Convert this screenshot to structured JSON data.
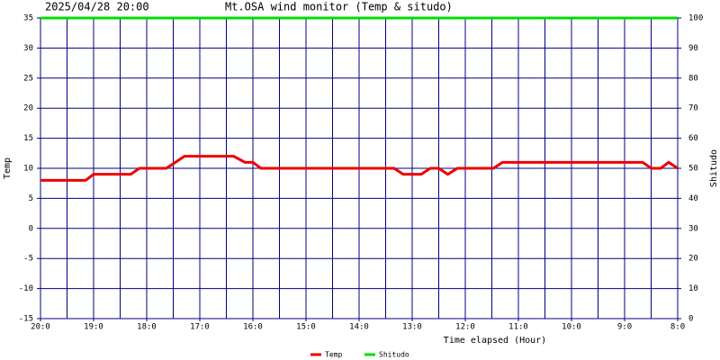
{
  "chart_data": {
    "type": "line",
    "title": "Mt.OSA wind monitor (Temp & situdo)",
    "subtitle": "2025/04/28 20:00",
    "xlabel": "Time elapsed (Hour)",
    "ylabel": "Temp",
    "y2label": "Shitudo",
    "xlim": [
      0,
      12
    ],
    "xticks": [
      {
        "value": 0,
        "label": "20:0"
      },
      {
        "value": 1,
        "label": "19:0"
      },
      {
        "value": 2,
        "label": "18:0"
      },
      {
        "value": 3,
        "label": "17:0"
      },
      {
        "value": 4,
        "label": "16:0"
      },
      {
        "value": 5,
        "label": "15:0"
      },
      {
        "value": 6,
        "label": "14:0"
      },
      {
        "value": 7,
        "label": "13:0"
      },
      {
        "value": 8,
        "label": "12:0"
      },
      {
        "value": 9,
        "label": "11:0"
      },
      {
        "value": 10,
        "label": "10:0"
      },
      {
        "value": 11,
        "label": "9:0"
      },
      {
        "value": 12,
        "label": "8:0"
      }
    ],
    "x_minor_ticks": [
      0.5,
      1.5,
      2.5,
      3.5,
      4.5,
      5.5,
      6.5,
      7.5,
      8.5,
      9.5,
      10.5,
      11.5
    ],
    "ylim": [
      -15,
      35
    ],
    "yticks": [
      -15,
      -10,
      -5,
      0,
      5,
      10,
      15,
      20,
      25,
      30,
      35
    ],
    "y2lim": [
      0,
      100
    ],
    "y2ticks": [
      0,
      10,
      20,
      30,
      40,
      50,
      60,
      70,
      80,
      90,
      100
    ],
    "grid": true,
    "grid_color": "#000080",
    "legend": "bottom",
    "series": [
      {
        "name": "Temp",
        "color": "#ee0000",
        "x": [
          0,
          0.85,
          1.0,
          1.7,
          1.86,
          2.37,
          2.54,
          2.71,
          3.64,
          3.85,
          4.0,
          4.15,
          6.66,
          6.83,
          7.17,
          7.34,
          7.5,
          7.67,
          7.85,
          8.53,
          8.7,
          11.34,
          11.5,
          11.68,
          11.83,
          12
        ],
        "values": [
          8,
          8,
          9,
          9,
          10,
          10,
          11,
          12,
          12,
          11,
          11,
          10,
          10,
          9,
          9,
          10,
          10,
          9,
          10,
          10,
          11,
          11,
          10,
          10,
          11,
          10
        ]
      },
      {
        "name": "Shitudo",
        "color": "#00dd00",
        "axis": "y2",
        "x": [
          0,
          12
        ],
        "values": [
          100,
          100
        ]
      }
    ]
  }
}
